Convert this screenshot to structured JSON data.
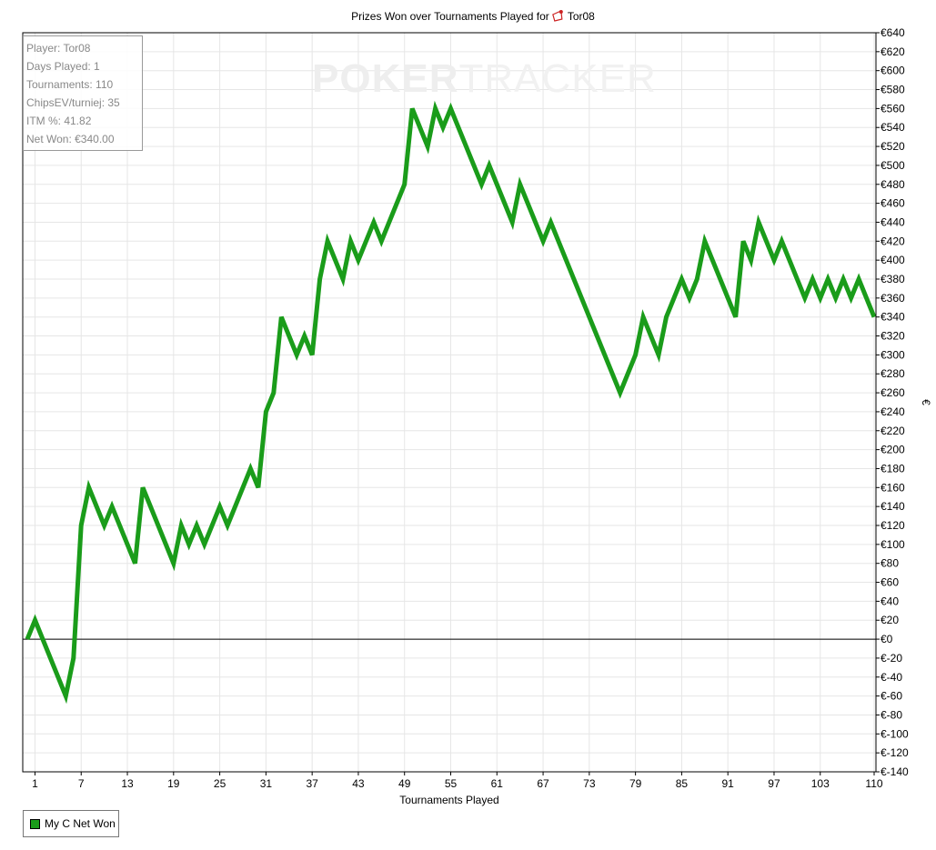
{
  "title": "Prizes Won over Tournaments Played for",
  "player_name": "Tor08",
  "watermark": {
    "part1": "POKER",
    "part2": "TRACKER"
  },
  "info_box": [
    "Player: Tor08",
    "Days Played: 1",
    "Tournaments: 110",
    "ChipsEV/turniej: 35",
    "ITM %: 41.82",
    "Net Won: €340.00"
  ],
  "legend": {
    "label": "My C Net Won",
    "color": "#1a9c1a"
  },
  "colors": {
    "line": "#1a9c1a",
    "grid": "#e6e6e6",
    "zero_line": "#000000"
  },
  "chart_data": {
    "type": "line",
    "title": "Prizes Won over Tournaments Played for Tor08",
    "xlabel": "Tournaments Played",
    "ylabel": "€",
    "xlim": [
      0,
      110
    ],
    "ylim": [
      -140,
      640
    ],
    "grid": true,
    "legend_position": "bottom-left",
    "x_ticks": [
      1,
      7,
      13,
      19,
      25,
      31,
      37,
      43,
      49,
      55,
      61,
      67,
      73,
      79,
      85,
      91,
      97,
      103,
      110
    ],
    "y_ticks": [
      -140,
      -120,
      -100,
      -80,
      -60,
      -40,
      -20,
      0,
      20,
      40,
      60,
      80,
      100,
      120,
      140,
      160,
      180,
      200,
      220,
      240,
      260,
      280,
      300,
      320,
      340,
      360,
      380,
      400,
      420,
      440,
      460,
      480,
      500,
      520,
      540,
      560,
      580,
      600,
      620,
      640
    ],
    "y_tick_labels": [
      "€-140",
      "€-120",
      "€-100",
      "€-80",
      "€-60",
      "€-40",
      "€-20",
      "€0",
      "€20",
      "€40",
      "€60",
      "€80",
      "€100",
      "€120",
      "€140",
      "€160",
      "€180",
      "€200",
      "€220",
      "€240",
      "€260",
      "€280",
      "€300",
      "€320",
      "€340",
      "€360",
      "€380",
      "€400",
      "€420",
      "€440",
      "€460",
      "€480",
      "€500",
      "€520",
      "€540",
      "€560",
      "€580",
      "€600",
      "€620",
      "€640"
    ],
    "series": [
      {
        "name": "My C Net Won",
        "x": [
          0,
          1,
          5,
          6,
          7,
          8,
          10,
          11,
          14,
          15,
          19,
          20,
          21,
          22,
          23,
          25,
          26,
          29,
          30,
          31,
          32,
          33,
          35,
          36,
          37,
          38,
          39,
          41,
          42,
          43,
          45,
          46,
          49,
          50,
          52,
          53,
          54,
          55,
          59,
          60,
          63,
          64,
          67,
          68,
          77,
          79,
          80,
          82,
          83,
          85,
          86,
          87,
          88,
          92,
          93,
          94,
          95,
          97,
          98,
          101,
          102,
          103,
          104,
          105,
          106,
          107,
          108,
          110
        ],
        "y": [
          0,
          20,
          -60,
          -20,
          120,
          160,
          120,
          140,
          80,
          160,
          80,
          120,
          100,
          120,
          100,
          140,
          120,
          180,
          160,
          240,
          260,
          340,
          300,
          320,
          300,
          380,
          420,
          380,
          420,
          400,
          440,
          420,
          480,
          560,
          520,
          560,
          540,
          560,
          480,
          500,
          440,
          480,
          420,
          440,
          260,
          300,
          340,
          300,
          340,
          380,
          360,
          380,
          420,
          340,
          420,
          400,
          440,
          400,
          420,
          360,
          380,
          360,
          380,
          360,
          380,
          360,
          380,
          340
        ]
      }
    ]
  }
}
